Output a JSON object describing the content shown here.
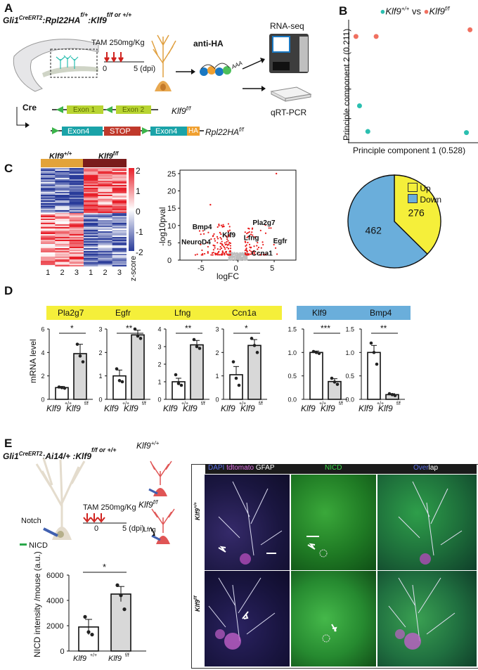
{
  "panels": {
    "A": {
      "letter": "A",
      "genotype_main": "Gli1",
      "genotype_sup1": "CreERT2",
      "genotype_mid": ":Rpl22HA",
      "genotype_sup2": "f/+",
      "genotype_end": ":Klf9",
      "genotype_sup3": "f/f or +/+",
      "tam_label": "TAM 250mg/Kg",
      "tick0": "0",
      "tick5": "5 (dpi)",
      "anti_ha": "anti-HA",
      "aaa": "AAA",
      "rnaseq": "RNA-seq",
      "qrtpcr": "qRT-PCR",
      "cre": "Cre",
      "exon1": "Exon 1",
      "exon2": "Exon 2",
      "klf9_ff": "Klf9",
      "klf9_ff_sup": "f/f",
      "exon4a": "Exon4",
      "stop": "STOP",
      "exon4b": "Exon4",
      "ha": "HA",
      "rpl22": "Rpl22HA",
      "rpl22_sup": "f/f",
      "colors": {
        "exon_green": "#b8d432",
        "exon_teal": "#1aa3a8",
        "stop_red": "#c0392b",
        "ha_orange": "#f0a030"
      }
    },
    "B": {
      "letter": "B",
      "legend_wt": "Klf9",
      "legend_wt_sup": "+/+",
      "legend_vs": "vs",
      "legend_ko": "Klf9",
      "legend_ko_sup": "f/f",
      "xlabel": "Principle component 1 (0.528)",
      "ylabel": "Principle component 2 (0.211)",
      "colors": {
        "wt": "#2bbfb0",
        "ko": "#f07060"
      }
    },
    "C": {
      "letter": "C",
      "heat_wt": "Klf9",
      "heat_wt_sup": "+/+",
      "heat_ko": "Klf9",
      "heat_ko_sup": "f/f",
      "heat_cols": [
        "1",
        "2",
        "3",
        "1",
        "2",
        "3"
      ],
      "zscore_label": "z-score",
      "zscore_ticks": [
        "2",
        "1",
        "0",
        "-1",
        "-2"
      ],
      "volcano_ylabel": "-log10pval",
      "volcano_xlabel": "logFC",
      "volcano_yticks": [
        "25",
        "20",
        "15",
        "10",
        "5",
        "0"
      ],
      "volcano_xticks": [
        "-5",
        "0",
        "5"
      ],
      "volcano_genes": [
        "Bmp4",
        "Klf9",
        "Lfng",
        "Pla2g7",
        "Egfr",
        "Ccna1",
        "NeuroD4"
      ],
      "pie_up_value": "276",
      "pie_down_value": "462",
      "legend_up": "Up",
      "legend_down": "Down",
      "colors": {
        "up": "#f5ef3a",
        "down": "#6aaedb",
        "heat_red": "#e8202a",
        "heat_blue": "#2a3c9a"
      }
    },
    "D": {
      "letter": "D",
      "ylabel": "mRNA level",
      "sig": [
        "*",
        "**",
        "**",
        "*",
        "***",
        "**"
      ],
      "x_wt": "Klf9",
      "x_wt_sup": "+/+",
      "x_ko": "Klf9",
      "x_ko_sup": "f/f",
      "gene_up": [
        "Pla2g7",
        "Egfr",
        "Lfng",
        "Ccn1a"
      ],
      "gene_down": [
        "Klf9",
        "Bmp4"
      ],
      "colors": {
        "up": "#f5ef3a",
        "down": "#6aaedb",
        "bar_ko": "#d8d8d8"
      }
    },
    "E": {
      "letter": "E",
      "genotype_main": "Gli1",
      "genotype_sup1": "CreERT2",
      "genotype_mid": ":Ai14/+ :Klf9",
      "genotype_sup2": "f/f or +/+",
      "wt_label": "Klf9",
      "wt_sup": "+/+",
      "ko_label": "Klf9",
      "ko_sup": "f/f",
      "tam_label": "TAM 250mg/Kg",
      "tick0": "0",
      "tick5": "5 (dpi)",
      "notch": "Notch",
      "nicd": "NICD",
      "lfng": "Lfng",
      "bar_ylabel": "NICD intensity /mouse (a.u.)",
      "bar_yticks": [
        "6000",
        "4000",
        "2000",
        "0"
      ],
      "bar_sig": "*",
      "mic_header_dapi": "DAPI",
      "mic_header_tdt": "tdtomato",
      "mic_header_gfap": "GFAP",
      "mic_header_nicd": "NICD",
      "mic_header_over": "Over",
      "mic_header_lap": "lap",
      "mic_row1": "Klf9",
      "mic_row1_sup": "+/+",
      "mic_row2": "Klf9",
      "mic_row2_sup": "f/f"
    }
  },
  "chart_data": [
    {
      "type": "scatter",
      "title": "",
      "xlabel": "Principle component 1 (0.528)",
      "ylabel": "Principle component 2 (0.211)",
      "series": [
        {
          "name": "Klf9+/+",
          "points": [
            [
              0.05,
              0.28
            ],
            [
              0.12,
              0.05
            ],
            [
              0.95,
              0.04
            ]
          ]
        },
        {
          "name": "Klf9f/f",
          "points": [
            [
              0.02,
              0.9
            ],
            [
              0.19,
              0.9
            ],
            [
              0.98,
              0.96
            ]
          ]
        }
      ],
      "xlim": [
        0,
        1
      ],
      "ylim": [
        0,
        1
      ],
      "grid": false,
      "legend": "top"
    },
    {
      "type": "heatmap",
      "title": "",
      "columns": [
        "1",
        "2",
        "3",
        "1",
        "2",
        "3"
      ],
      "groups": [
        "Klf9+/+",
        "Klf9f/f"
      ],
      "zlim": [
        -2,
        2
      ],
      "colorbar_label": "z-score"
    },
    {
      "type": "scatter",
      "title": "",
      "xlabel": "logFC",
      "ylabel": "-log10pval",
      "xlim": [
        -8,
        8
      ],
      "ylim": [
        0,
        26
      ],
      "labeled_points": [
        {
          "label": "Bmp4",
          "x": -2.6,
          "y": 8.5
        },
        {
          "label": "Klf9",
          "x": -1.0,
          "y": 6.0
        },
        {
          "label": "Lfng",
          "x": 0.9,
          "y": 5.4
        },
        {
          "label": "Pla2g7",
          "x": 5.9,
          "y": 9.5
        },
        {
          "label": "Egfr",
          "x": 6.6,
          "y": 6.5
        },
        {
          "label": "Ccna1",
          "x": 4.0,
          "y": 4.0
        },
        {
          "label": "NeuroD4",
          "x": -7.6,
          "y": 4.2
        }
      ]
    },
    {
      "type": "pie",
      "title": "",
      "categories": [
        "Up",
        "Down"
      ],
      "values": [
        276,
        462
      ],
      "legend": "top-right"
    },
    {
      "type": "bar",
      "title": "",
      "ylabel": "mRNA level",
      "categories": [
        "Klf9+/+",
        "Klf9f/f"
      ],
      "panels": [
        {
          "gene": "Pla2g7",
          "group": "up",
          "values": [
            1.0,
            3.9
          ],
          "errors": [
            0.1,
            0.8
          ],
          "ylim": [
            0,
            6
          ],
          "yticks": [
            0,
            2,
            4,
            6
          ],
          "points": [
            [
              1.05,
              1.0,
              0.95
            ],
            [
              4.7,
              3.7,
              3.2
            ]
          ],
          "sig": "*"
        },
        {
          "gene": "Egfr",
          "group": "up",
          "values": [
            1.0,
            2.75
          ],
          "errors": [
            0.25,
            0.2
          ],
          "ylim": [
            0,
            3
          ],
          "yticks": [
            0,
            1,
            2,
            3
          ],
          "points": [
            [
              1.3,
              0.8,
              0.75
            ],
            [
              3.0,
              2.7,
              2.6
            ]
          ],
          "sig": "**"
        },
        {
          "gene": "Lfng",
          "group": "up",
          "values": [
            1.0,
            3.1
          ],
          "errors": [
            0.2,
            0.25
          ],
          "ylim": [
            0,
            4
          ],
          "yticks": [
            0,
            1,
            2,
            3,
            4
          ],
          "points": [
            [
              1.4,
              0.9,
              0.8
            ],
            [
              3.4,
              3.0,
              2.9
            ]
          ],
          "sig": "**"
        },
        {
          "gene": "Ccn1a",
          "group": "up",
          "values": [
            1.05,
            2.3
          ],
          "errors": [
            0.35,
            0.25
          ],
          "ylim": [
            0,
            3
          ],
          "yticks": [
            0,
            1,
            2,
            3
          ],
          "points": [
            [
              1.6,
              0.9,
              0.6
            ],
            [
              2.6,
              2.3,
              2.0
            ]
          ],
          "sig": "*"
        },
        {
          "gene": "Klf9",
          "group": "down",
          "values": [
            1.0,
            0.38
          ],
          "errors": [
            0.03,
            0.06
          ],
          "ylim": [
            0,
            1.5
          ],
          "yticks": [
            0.0,
            0.5,
            1.0,
            1.5
          ],
          "points": [
            [
              1.02,
              1.0,
              0.98
            ],
            [
              0.45,
              0.37,
              0.32
            ]
          ],
          "sig": "***"
        },
        {
          "gene": "Bmp4",
          "group": "down",
          "values": [
            1.0,
            0.1
          ],
          "errors": [
            0.15,
            0.02
          ],
          "ylim": [
            0,
            1.5
          ],
          "yticks": [
            0.0,
            0.5,
            1.0,
            1.5
          ],
          "points": [
            [
              1.2,
              1.0,
              0.75
            ],
            [
              0.12,
              0.1,
              0.08
            ]
          ],
          "sig": "**"
        }
      ]
    },
    {
      "type": "bar",
      "title": "",
      "ylabel": "NICD intensity /mouse (a.u.)",
      "categories": [
        "Klf9+/+",
        "Klf9f/f"
      ],
      "values": [
        1900,
        4500
      ],
      "errors": [
        600,
        600
      ],
      "points": [
        [
          2700,
          1500,
          1300
        ],
        [
          5200,
          4400,
          3300
        ]
      ],
      "ylim": [
        0,
        6000
      ],
      "sig": "*"
    }
  ]
}
